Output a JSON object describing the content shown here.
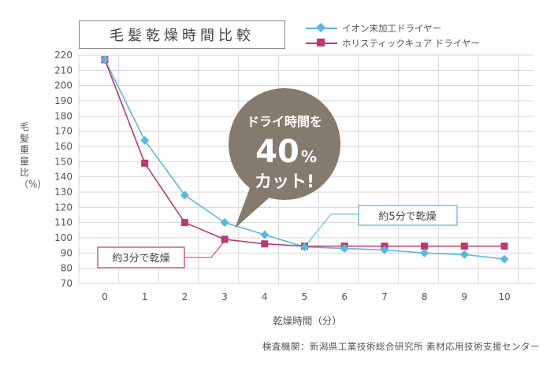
{
  "chart_data": {
    "type": "line",
    "title": "毛髪乾燥時間比較",
    "xlabel": "乾燥時間（分）",
    "ylabel": "毛髪重量比（%）",
    "x": [
      0,
      1,
      2,
      3,
      4,
      5,
      6,
      7,
      8,
      9,
      10
    ],
    "ylim": [
      70,
      220
    ],
    "yticks": [
      70,
      80,
      90,
      100,
      110,
      120,
      130,
      140,
      150,
      160,
      170,
      180,
      190,
      200,
      210,
      220
    ],
    "grid": true,
    "legend_position": "top-right",
    "series": [
      {
        "name": "イオン未加工ドライヤー",
        "color": "#5bb7dc",
        "marker": "diamond",
        "values": [
          217,
          164,
          128,
          110,
          102,
          94,
          93,
          92,
          90,
          89,
          86
        ]
      },
      {
        "name": "ホリスティックキュア ドライヤー",
        "color": "#b83a70",
        "marker": "square",
        "values": [
          217,
          149,
          110,
          99,
          96,
          94.5,
          94.5,
          94.5,
          94.5,
          94.5,
          94.5
        ]
      }
    ],
    "annotations": {
      "bubble_line1": "ドライ時間を",
      "bubble_big": "40",
      "bubble_pct": "%",
      "bubble_line3": "カット!",
      "callout_blue": "約5分で乾燥",
      "callout_red": "約3分で乾燥"
    }
  },
  "source": "検査機関：新潟県工業技術総合研究所 素材応用技術支援センター"
}
